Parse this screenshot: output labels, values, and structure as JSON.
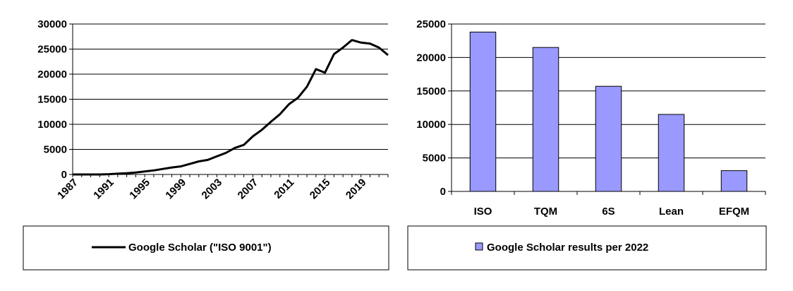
{
  "chart_data": [
    {
      "type": "line",
      "title": "",
      "xlabel": "",
      "ylabel": "",
      "ylim": [
        0,
        30000
      ],
      "yticks": [
        0,
        5000,
        10000,
        15000,
        20000,
        25000,
        30000
      ],
      "xlim": [
        1987,
        2022
      ],
      "xticks": [
        1987,
        1991,
        1995,
        1999,
        2003,
        2007,
        2011,
        2015,
        2019
      ],
      "grid": "horizontal",
      "legend": "bottom",
      "series": [
        {
          "name": "Google Scholar (\"ISO 9001\")",
          "color": "#000000",
          "x": [
            1987,
            1988,
            1989,
            1990,
            1991,
            1992,
            1993,
            1994,
            1995,
            1996,
            1997,
            1998,
            1999,
            2000,
            2001,
            2002,
            2003,
            2004,
            2005,
            2006,
            2007,
            2008,
            2009,
            2010,
            2011,
            2012,
            2013,
            2014,
            2015,
            2016,
            2017,
            2018,
            2019,
            2020,
            2021,
            2022
          ],
          "values": [
            0,
            0,
            0,
            0,
            50,
            150,
            250,
            400,
            600,
            800,
            1100,
            1400,
            1600,
            2100,
            2600,
            2900,
            3600,
            4300,
            5300,
            5900,
            7600,
            8900,
            10500,
            12000,
            14000,
            15300,
            17500,
            21000,
            20300,
            24000,
            25300,
            26800,
            26300,
            26100,
            25300,
            23800
          ]
        }
      ]
    },
    {
      "type": "bar",
      "title": "",
      "xlabel": "",
      "ylabel": "",
      "ylim": [
        0,
        25000
      ],
      "yticks": [
        0,
        5000,
        10000,
        15000,
        20000,
        25000
      ],
      "grid": "horizontal",
      "legend": "bottom",
      "categories": [
        "ISO",
        "TQM",
        "6S",
        "Lean",
        "EFQM"
      ],
      "series": [
        {
          "name": "Google Scholar results per 2022",
          "color": "#9999ff",
          "values": [
            23800,
            21500,
            15700,
            11500,
            3100
          ]
        }
      ]
    }
  ]
}
